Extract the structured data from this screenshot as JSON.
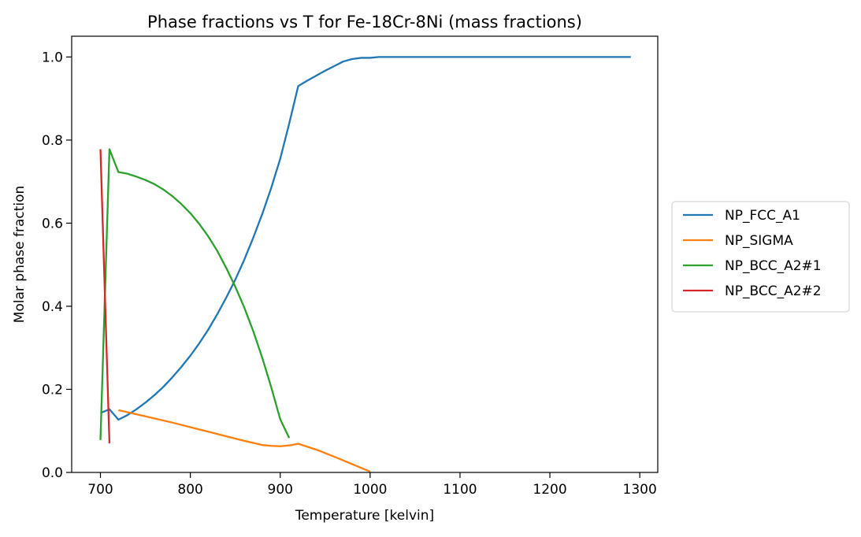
{
  "chart_data": {
    "type": "line",
    "title": "Phase fractions vs T for Fe-18Cr-8Ni (mass fractions)",
    "xlabel": "Temperature [kelvin]",
    "ylabel": "Molar phase fraction",
    "xlim": [
      668,
      1320
    ],
    "ylim": [
      0,
      1.05
    ],
    "xticks": [
      700,
      800,
      900,
      1000,
      1100,
      1200,
      1300
    ],
    "xtick_labels": [
      "700",
      "800",
      "900",
      "1000",
      "1100",
      "1200",
      "1300"
    ],
    "yticks": [
      0,
      0.2,
      0.4,
      0.6,
      0.8,
      1.0
    ],
    "ytick_labels": [
      "0.0",
      "0.2",
      "0.4",
      "0.6",
      "0.8",
      "1.0"
    ],
    "grid": false,
    "legend_position": "right-outside",
    "series": [
      {
        "name": "NP_FCC_A1",
        "color": "#1f77b4",
        "points": [
          [
            700,
            0.143
          ],
          [
            710,
            0.152
          ],
          [
            720,
            0.127
          ],
          [
            730,
            0.138
          ],
          [
            740,
            0.152
          ],
          [
            750,
            0.168
          ],
          [
            760,
            0.186
          ],
          [
            770,
            0.206
          ],
          [
            780,
            0.229
          ],
          [
            790,
            0.254
          ],
          [
            800,
            0.281
          ],
          [
            810,
            0.311
          ],
          [
            820,
            0.344
          ],
          [
            830,
            0.381
          ],
          [
            840,
            0.421
          ],
          [
            850,
            0.464
          ],
          [
            860,
            0.512
          ],
          [
            870,
            0.565
          ],
          [
            880,
            0.622
          ],
          [
            890,
            0.685
          ],
          [
            900,
            0.755
          ],
          [
            910,
            0.84
          ],
          [
            920,
            0.93
          ],
          [
            930,
            0.943
          ],
          [
            940,
            0.955
          ],
          [
            950,
            0.967
          ],
          [
            960,
            0.978
          ],
          [
            970,
            0.989
          ],
          [
            980,
            0.995
          ],
          [
            990,
            0.998
          ],
          [
            1000,
            0.998
          ],
          [
            1010,
            1.0
          ],
          [
            1100,
            1.0
          ],
          [
            1200,
            1.0
          ],
          [
            1290,
            1.0
          ]
        ]
      },
      {
        "name": "NP_SIGMA",
        "color": "#ff7f0e",
        "points": [
          [
            720,
            0.15
          ],
          [
            740,
            0.14
          ],
          [
            760,
            0.13
          ],
          [
            780,
            0.12
          ],
          [
            800,
            0.109
          ],
          [
            820,
            0.098
          ],
          [
            840,
            0.087
          ],
          [
            860,
            0.076
          ],
          [
            870,
            0.071
          ],
          [
            880,
            0.066
          ],
          [
            890,
            0.064
          ],
          [
            900,
            0.063
          ],
          [
            910,
            0.065
          ],
          [
            920,
            0.069
          ],
          [
            940,
            0.055
          ],
          [
            960,
            0.038
          ],
          [
            980,
            0.02
          ],
          [
            1000,
            0.002
          ]
        ]
      },
      {
        "name": "NP_BCC_A2#1",
        "color": "#2ca02c",
        "points": [
          [
            700,
            0.078
          ],
          [
            710,
            0.778
          ],
          [
            720,
            0.723
          ],
          [
            730,
            0.719
          ],
          [
            740,
            0.712
          ],
          [
            750,
            0.704
          ],
          [
            760,
            0.694
          ],
          [
            770,
            0.681
          ],
          [
            780,
            0.665
          ],
          [
            790,
            0.646
          ],
          [
            800,
            0.624
          ],
          [
            810,
            0.598
          ],
          [
            820,
            0.568
          ],
          [
            830,
            0.533
          ],
          [
            840,
            0.492
          ],
          [
            850,
            0.447
          ],
          [
            860,
            0.397
          ],
          [
            870,
            0.34
          ],
          [
            880,
            0.276
          ],
          [
            890,
            0.205
          ],
          [
            900,
            0.128
          ],
          [
            910,
            0.083
          ]
        ]
      },
      {
        "name": "NP_BCC_A2#2",
        "color": "#d62728",
        "points": [
          [
            700,
            0.778
          ],
          [
            710,
            0.07
          ]
        ]
      }
    ]
  }
}
